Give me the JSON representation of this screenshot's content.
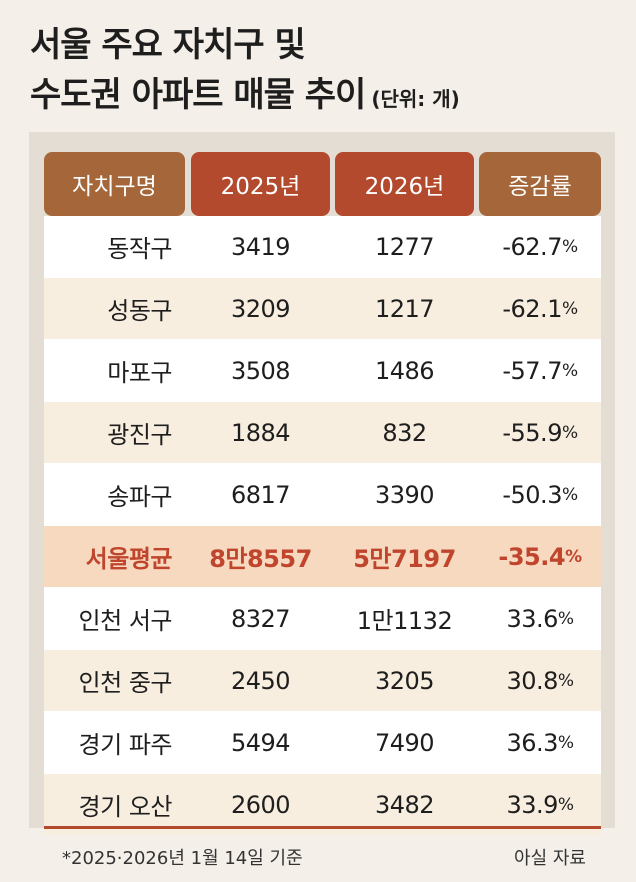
{
  "title_line1": "서울 주요 자치구 및",
  "title_line2": "수도권 아파트 매물 추이",
  "unit": "(단위: 개)",
  "headers": [
    "자치구명",
    "2025년",
    "2026년",
    "증감률"
  ],
  "rows": [
    {
      "name": "동작구",
      "y2025": "3419",
      "y2026": "1277",
      "rate": "-62.7",
      "pct": "%"
    },
    {
      "name": "성동구",
      "y2025": "3209",
      "y2026": "1217",
      "rate": "-62.1",
      "pct": "%"
    },
    {
      "name": "마포구",
      "y2025": "3508",
      "y2026": "1486",
      "rate": "-57.7",
      "pct": "%"
    },
    {
      "name": "광진구",
      "y2025": "1884",
      "y2026": "832",
      "rate": "-55.9",
      "pct": "%"
    },
    {
      "name": "송파구",
      "y2025": "6817",
      "y2026": "3390",
      "rate": "-50.3",
      "pct": "%"
    },
    {
      "name": "서울평균",
      "y2025": "8만8557",
      "y2026": "5만7197",
      "rate": "-35.4",
      "pct": "%"
    },
    {
      "name": "인천 서구",
      "y2025": "8327",
      "y2026": "1만1132",
      "rate": "33.6",
      "pct": "%"
    },
    {
      "name": "인천 중구",
      "y2025": "2450",
      "y2026": "3205",
      "rate": "30.8",
      "pct": "%"
    },
    {
      "name": "경기 파주",
      "y2025": "5494",
      "y2026": "7490",
      "rate": "36.3",
      "pct": "%"
    },
    {
      "name": "경기 오산",
      "y2025": "2600",
      "y2026": "3482",
      "rate": "33.9",
      "pct": "%"
    }
  ],
  "footnote": "*2025·2026년 1월 14일 기준",
  "source": "아실 자료",
  "colors": {
    "header_brown": "#a5673a",
    "header_red": "#b34a2e",
    "highlight_row": "#f7d9bf",
    "highlight_text": "#c0452d",
    "even_row": "#f7eedf",
    "background": "#f4efe8"
  },
  "chart_data": {
    "type": "table",
    "columns": [
      "자치구명",
      "2025년",
      "2026년",
      "증감률"
    ],
    "categories": [
      "동작구",
      "성동구",
      "마포구",
      "광진구",
      "송파구",
      "서울평균",
      "인천 서구",
      "인천 중구",
      "경기 파주",
      "경기 오산"
    ],
    "series": [
      {
        "name": "2025년",
        "values": [
          3419,
          3209,
          3508,
          1884,
          6817,
          88557,
          8327,
          2450,
          5494,
          2600
        ]
      },
      {
        "name": "2026년",
        "values": [
          1277,
          1217,
          1486,
          832,
          3390,
          57197,
          11132,
          3205,
          7490,
          3482
        ]
      },
      {
        "name": "증감률",
        "values": [
          -62.7,
          -62.1,
          -57.7,
          -55.9,
          -50.3,
          -35.4,
          33.6,
          30.8,
          36.3,
          33.9
        ]
      }
    ],
    "title": "서울 주요 자치구 및 수도권 아파트 매물 추이",
    "unit": "(단위: 개)",
    "highlighted_row": "서울평균"
  }
}
